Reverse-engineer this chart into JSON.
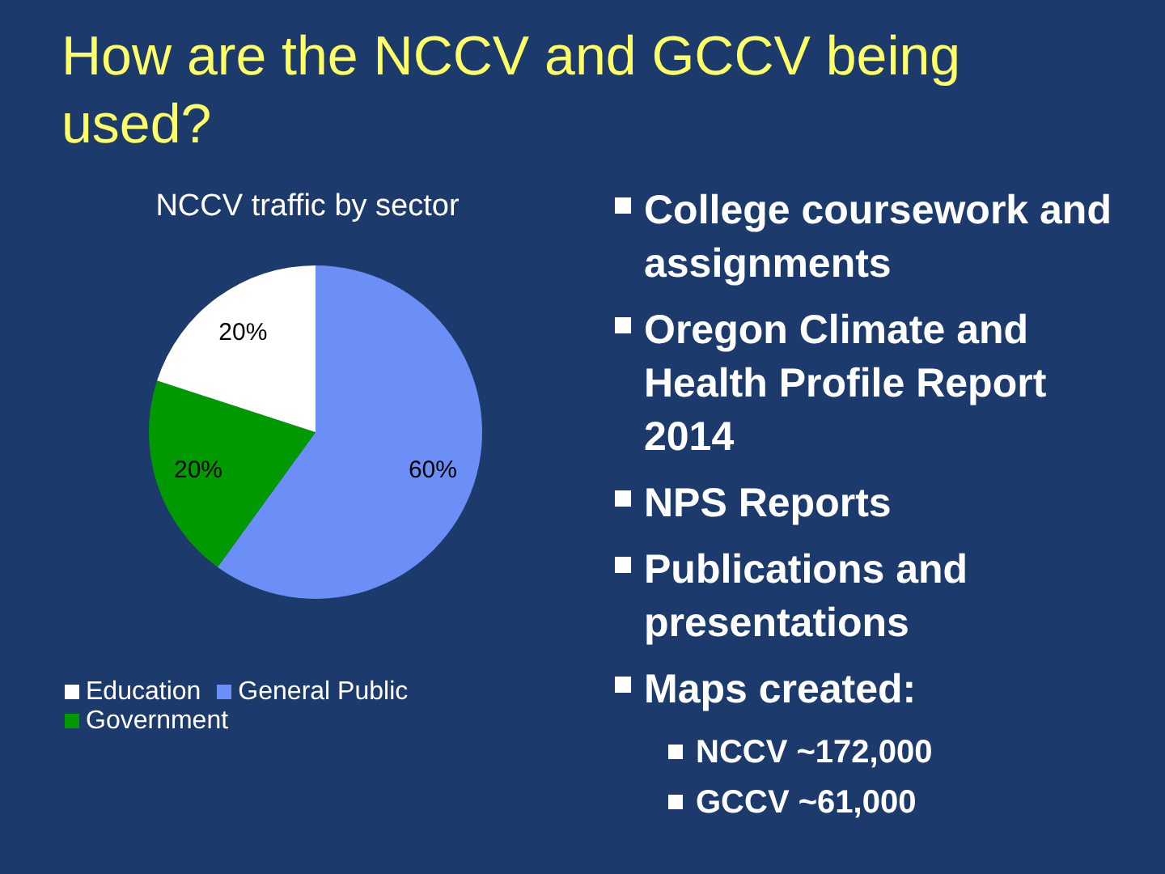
{
  "chart_data": [
    {
      "type": "pie",
      "title": "How are the NCCV and GCCV being used?",
      "subtitle": "NCCV traffic by sector",
      "categories": [
        "General Public",
        "Government",
        "Education"
      ],
      "values": [
        60,
        20,
        20
      ],
      "colors": [
        "#6b8ff7",
        "#009a00",
        "#ffffff"
      ],
      "value_labels": [
        "60%",
        "20%",
        "20%"
      ],
      "legend": "bottom"
    },
    {
      "type": "other",
      "annotations": [
        "College coursework and assignments",
        "Oregon Climate and Health Profile Report 2014",
        "NPS Reports",
        "Publications and presentations",
        "Maps created:"
      ]
    },
    {
      "type": "other",
      "annotations": [
        "NCCV ~172,000",
        "GCCV ~61,000"
      ]
    }
  ]
}
